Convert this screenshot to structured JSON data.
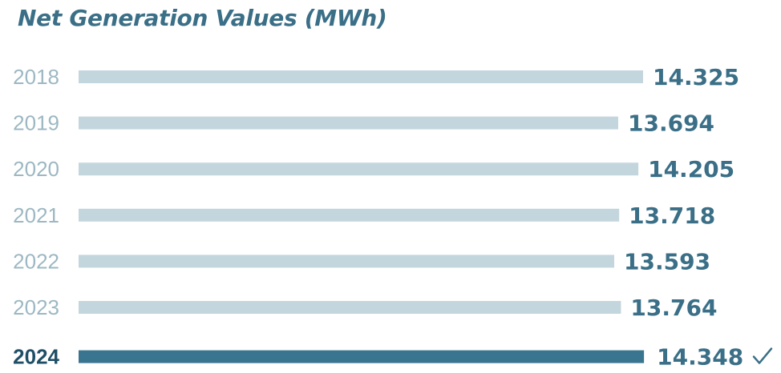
{
  "chart_data": {
    "type": "bar",
    "orientation": "horizontal",
    "title": "Net Generation Values (MWh)",
    "categories": [
      "2018",
      "2019",
      "2020",
      "2021",
      "2022",
      "2023",
      "2024"
    ],
    "values": [
      14325,
      13694,
      14205,
      13718,
      13593,
      13764,
      14348
    ],
    "value_labels": [
      "14.325",
      "13.694",
      "14.205",
      "13.718",
      "13.593",
      "13.764",
      "14.348"
    ],
    "highlight_category": "2024",
    "highlight_icon": "checkmark-icon",
    "colors": {
      "bar": "#c4d6dd",
      "highlight_bar": "#3a7590",
      "label": "#3a6f87",
      "year_label": "#9db8c3"
    },
    "grid": false
  }
}
